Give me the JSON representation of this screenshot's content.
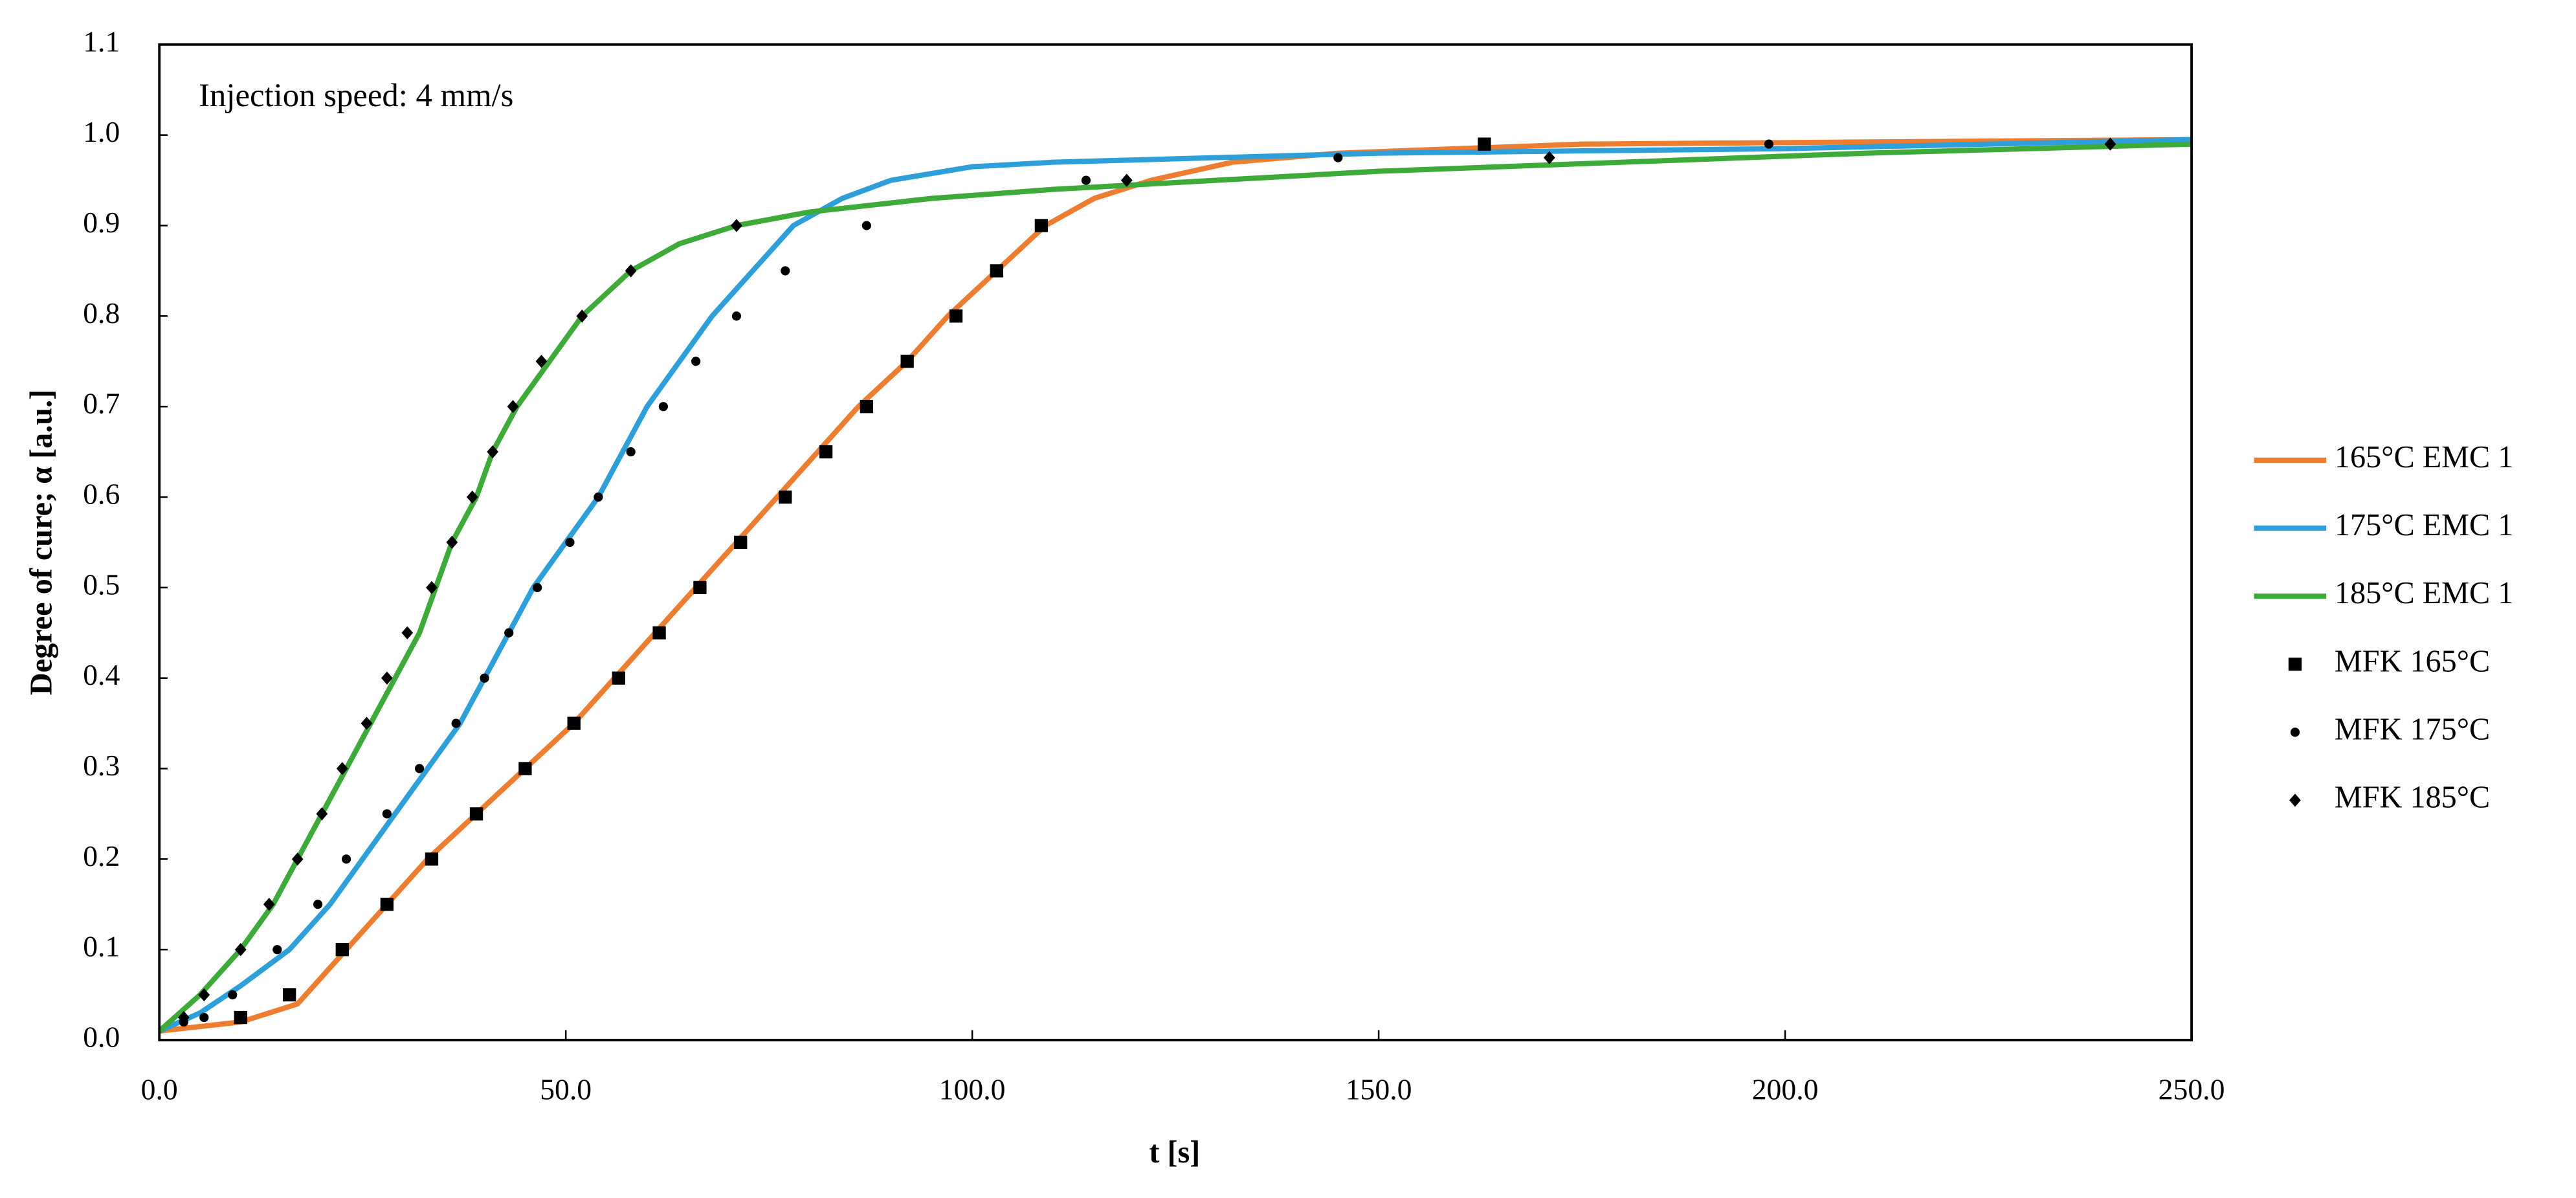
{
  "chart_data": {
    "type": "line",
    "annotation": "Injection speed: 4 mm/s",
    "x_label": "t [s]",
    "y_label": "Degree of cure; α [a.u.]",
    "xlim": [
      0,
      250
    ],
    "ylim": [
      0,
      1.1
    ],
    "xticks": [
      {
        "value": 0,
        "label": "0.0"
      },
      {
        "value": 50,
        "label": "50.0"
      },
      {
        "value": 100,
        "label": "100.0"
      },
      {
        "value": 150,
        "label": "150.0"
      },
      {
        "value": 200,
        "label": "200.0"
      },
      {
        "value": 250,
        "label": "250.0"
      }
    ],
    "yticks": [
      {
        "value": 0,
        "label": "0.0"
      },
      {
        "value": 0.1,
        "label": "0.1"
      },
      {
        "value": 0.2,
        "label": "0.2"
      },
      {
        "value": 0.3,
        "label": "0.3"
      },
      {
        "value": 0.4,
        "label": "0.4"
      },
      {
        "value": 0.5,
        "label": "0.5"
      },
      {
        "value": 0.6,
        "label": "0.6"
      },
      {
        "value": 0.7,
        "label": "0.7"
      },
      {
        "value": 0.8,
        "label": "0.8"
      },
      {
        "value": 0.9,
        "label": "0.9"
      },
      {
        "value": 1,
        "label": "1.0"
      },
      {
        "value": 1.1,
        "label": "1.1"
      }
    ],
    "legend": "right",
    "series": [
      {
        "name": "165°C EMC 1",
        "color": "#ed7d31",
        "style": "line",
        "x": [
          0,
          10,
          17,
          23,
          28,
          33,
          39,
          45,
          51,
          56,
          61,
          66,
          71,
          76,
          81,
          86,
          92,
          97,
          103,
          109,
          115,
          122,
          132,
          145,
          175,
          250
        ],
        "values": [
          0.01,
          0.02,
          0.04,
          0.1,
          0.15,
          0.2,
          0.25,
          0.3,
          0.35,
          0.4,
          0.45,
          0.5,
          0.55,
          0.6,
          0.65,
          0.7,
          0.75,
          0.8,
          0.85,
          0.9,
          0.93,
          0.95,
          0.97,
          0.98,
          0.99,
          0.995
        ]
      },
      {
        "name": "175°C EMC 1",
        "color": "#2e9fd8",
        "style": "line",
        "x": [
          0,
          5,
          10,
          16,
          21,
          25,
          29,
          33,
          37,
          40,
          43,
          46,
          50,
          54,
          57,
          60,
          64,
          68,
          73,
          78,
          84,
          90,
          100,
          110,
          130,
          150,
          200,
          250
        ],
        "values": [
          0.01,
          0.03,
          0.06,
          0.1,
          0.15,
          0.2,
          0.25,
          0.3,
          0.35,
          0.4,
          0.45,
          0.5,
          0.55,
          0.6,
          0.65,
          0.7,
          0.75,
          0.8,
          0.85,
          0.9,
          0.93,
          0.95,
          0.965,
          0.97,
          0.975,
          0.98,
          0.985,
          0.995
        ]
      },
      {
        "name": "185°C EMC 1",
        "color": "#3daa3a",
        "style": "line",
        "x": [
          0,
          5,
          10,
          14,
          17,
          20,
          23,
          26,
          29,
          32,
          34,
          36,
          39,
          41,
          44,
          48,
          52,
          58,
          64,
          71,
          80,
          95,
          110,
          130,
          150,
          180,
          210,
          250
        ],
        "values": [
          0.01,
          0.05,
          0.1,
          0.15,
          0.2,
          0.25,
          0.3,
          0.35,
          0.4,
          0.45,
          0.5,
          0.55,
          0.6,
          0.65,
          0.7,
          0.75,
          0.8,
          0.85,
          0.88,
          0.9,
          0.915,
          0.93,
          0.94,
          0.95,
          0.96,
          0.97,
          0.98,
          0.99
        ]
      },
      {
        "name": "MFK 165°C",
        "color": "#000000",
        "style": "marker",
        "marker": "square",
        "x": [
          10,
          16,
          22.5,
          28,
          33.5,
          39,
          45,
          51,
          56.5,
          61.5,
          66.5,
          71.5,
          77,
          82,
          87,
          92,
          98,
          103,
          108.5,
          163
        ],
        "values": [
          0.025,
          0.05,
          0.1,
          0.15,
          0.2,
          0.25,
          0.3,
          0.35,
          0.4,
          0.45,
          0.5,
          0.55,
          0.6,
          0.65,
          0.7,
          0.75,
          0.8,
          0.85,
          0.9,
          0.99
        ]
      },
      {
        "name": "MFK 175°C",
        "color": "#000000",
        "style": "marker",
        "marker": "circle",
        "x": [
          3,
          5.5,
          9,
          14.5,
          19.5,
          23,
          28,
          32,
          36.5,
          40,
          43,
          46.5,
          50.5,
          54,
          58,
          62,
          66,
          71,
          77,
          87,
          114,
          145,
          198
        ],
        "values": [
          0.02,
          0.025,
          0.05,
          0.1,
          0.15,
          0.2,
          0.25,
          0.3,
          0.35,
          0.4,
          0.45,
          0.5,
          0.55,
          0.6,
          0.65,
          0.7,
          0.75,
          0.8,
          0.85,
          0.9,
          0.95,
          0.975,
          0.99
        ]
      },
      {
        "name": "MFK 185°C",
        "color": "#000000",
        "style": "marker",
        "marker": "diamond",
        "x": [
          3,
          5.5,
          10,
          13.5,
          17,
          20,
          22.5,
          25.5,
          28,
          30.5,
          33.5,
          36,
          38.5,
          41,
          43.5,
          47,
          52,
          58,
          71,
          119,
          171,
          240
        ],
        "values": [
          0.025,
          0.05,
          0.1,
          0.15,
          0.2,
          0.25,
          0.3,
          0.35,
          0.4,
          0.45,
          0.5,
          0.55,
          0.6,
          0.65,
          0.7,
          0.75,
          0.8,
          0.85,
          0.9,
          0.95,
          0.975,
          0.99
        ]
      }
    ]
  }
}
